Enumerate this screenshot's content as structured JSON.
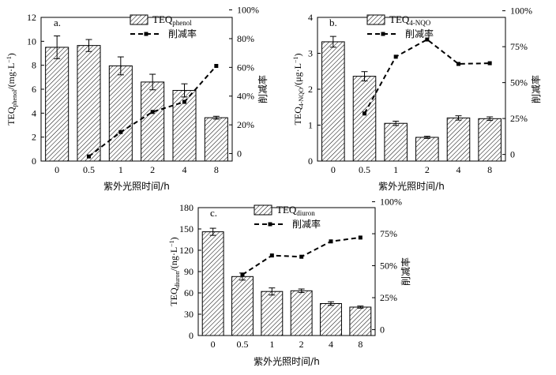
{
  "chart_data": [
    {
      "type": "bar",
      "panel_label": "a.",
      "categories": [
        "0",
        "0.5",
        "1",
        "2",
        "4",
        "8"
      ],
      "series": [
        {
          "name": "TEQ_phenol",
          "name_main": "TEQ",
          "name_sub": "phenol",
          "kind": "bar",
          "values": [
            9.5,
            9.65,
            7.95,
            6.6,
            5.9,
            3.62
          ],
          "errors": [
            0.95,
            0.5,
            0.75,
            0.65,
            0.55,
            0.12
          ]
        },
        {
          "name": "削减率",
          "kind": "line",
          "axis": "right",
          "values": [
            null,
            -2,
            15,
            29,
            36,
            61
          ]
        }
      ],
      "ylabel_left": {
        "main": "TEQ",
        "sub": "phenol",
        "units": "/(mg·L",
        "sup": "−1",
        "close": ")"
      },
      "ylabel_right": "削减率",
      "xlabel": "紫外光照时间/h",
      "ylim_left": [
        0,
        12
      ],
      "yticks_left": [
        "0",
        "2",
        "4",
        "6",
        "8",
        "10",
        "12"
      ],
      "ylim_right": [
        -5.2,
        94.8
      ],
      "yticks_right": [
        {
          "v": 0,
          "label": "0"
        },
        {
          "v": 20,
          "label": "20%"
        },
        {
          "v": 40,
          "label": "40%"
        },
        {
          "v": 60,
          "label": "60%"
        },
        {
          "v": 80,
          "label": "80%"
        },
        {
          "v": 100,
          "label": "100%"
        }
      ]
    },
    {
      "type": "bar",
      "panel_label": "b.",
      "categories": [
        "0",
        "0.5",
        "1",
        "2",
        "4",
        "8"
      ],
      "series": [
        {
          "name": "TEQ_4-NQO",
          "name_main": "TEQ",
          "name_sub": "4-NQO",
          "kind": "bar",
          "values": [
            3.32,
            2.36,
            1.05,
            0.66,
            1.2,
            1.18
          ],
          "errors": [
            0.15,
            0.13,
            0.06,
            0.03,
            0.06,
            0.05
          ]
        },
        {
          "name": "削减率",
          "kind": "line",
          "axis": "right",
          "values": [
            null,
            28.5,
            68,
            80,
            63,
            63.5
          ]
        }
      ],
      "ylabel_left": {
        "main": "TEQ",
        "sub": "4-NQO",
        "units": "/(μg·L",
        "sup": "−1",
        "close": ")"
      },
      "ylabel_right": "削减率",
      "xlabel": "紫外光照时间/h",
      "ylim_left": [
        0,
        4
      ],
      "yticks_left": [
        "0",
        "1",
        "2",
        "3",
        "4"
      ],
      "ylim_right": [
        -4.6,
        95.4
      ],
      "yticks_right": [
        {
          "v": 0,
          "label": "0"
        },
        {
          "v": 25,
          "label": "25%"
        },
        {
          "v": 50,
          "label": "50%"
        },
        {
          "v": 75,
          "label": "75%"
        },
        {
          "v": 100,
          "label": "100%"
        }
      ]
    },
    {
      "type": "bar",
      "panel_label": "c.",
      "categories": [
        "0",
        "0.5",
        "1",
        "2",
        "4",
        "8"
      ],
      "series": [
        {
          "name": "TEQ_diuron",
          "name_main": "TEQ",
          "name_sub": "diuron",
          "kind": "bar",
          "values": [
            146,
            83,
            62,
            63,
            45,
            40
          ],
          "errors": [
            5,
            5,
            5,
            2.5,
            2.5,
            1.5
          ]
        },
        {
          "name": "削减率",
          "kind": "line",
          "axis": "right",
          "values": [
            null,
            43,
            58,
            57,
            69,
            72
          ]
        }
      ],
      "ylabel_left": {
        "main": "TEQ",
        "sub": "diuron",
        "units": "/(ng·L",
        "sup": "−1",
        "close": ")"
      },
      "ylabel_right": "削减率",
      "xlabel": "紫外光照时间/h",
      "ylim_left": [
        0,
        180
      ],
      "yticks_left": [
        "0",
        "30",
        "60",
        "90",
        "120",
        "150",
        "180"
      ],
      "ylim_right": [
        -4.6,
        95.4
      ],
      "yticks_right": [
        {
          "v": 0,
          "label": "0"
        },
        {
          "v": 25,
          "label": "25%"
        },
        {
          "v": 50,
          "label": "50%"
        },
        {
          "v": 75,
          "label": "75%"
        },
        {
          "v": 100,
          "label": "100%"
        }
      ]
    }
  ]
}
